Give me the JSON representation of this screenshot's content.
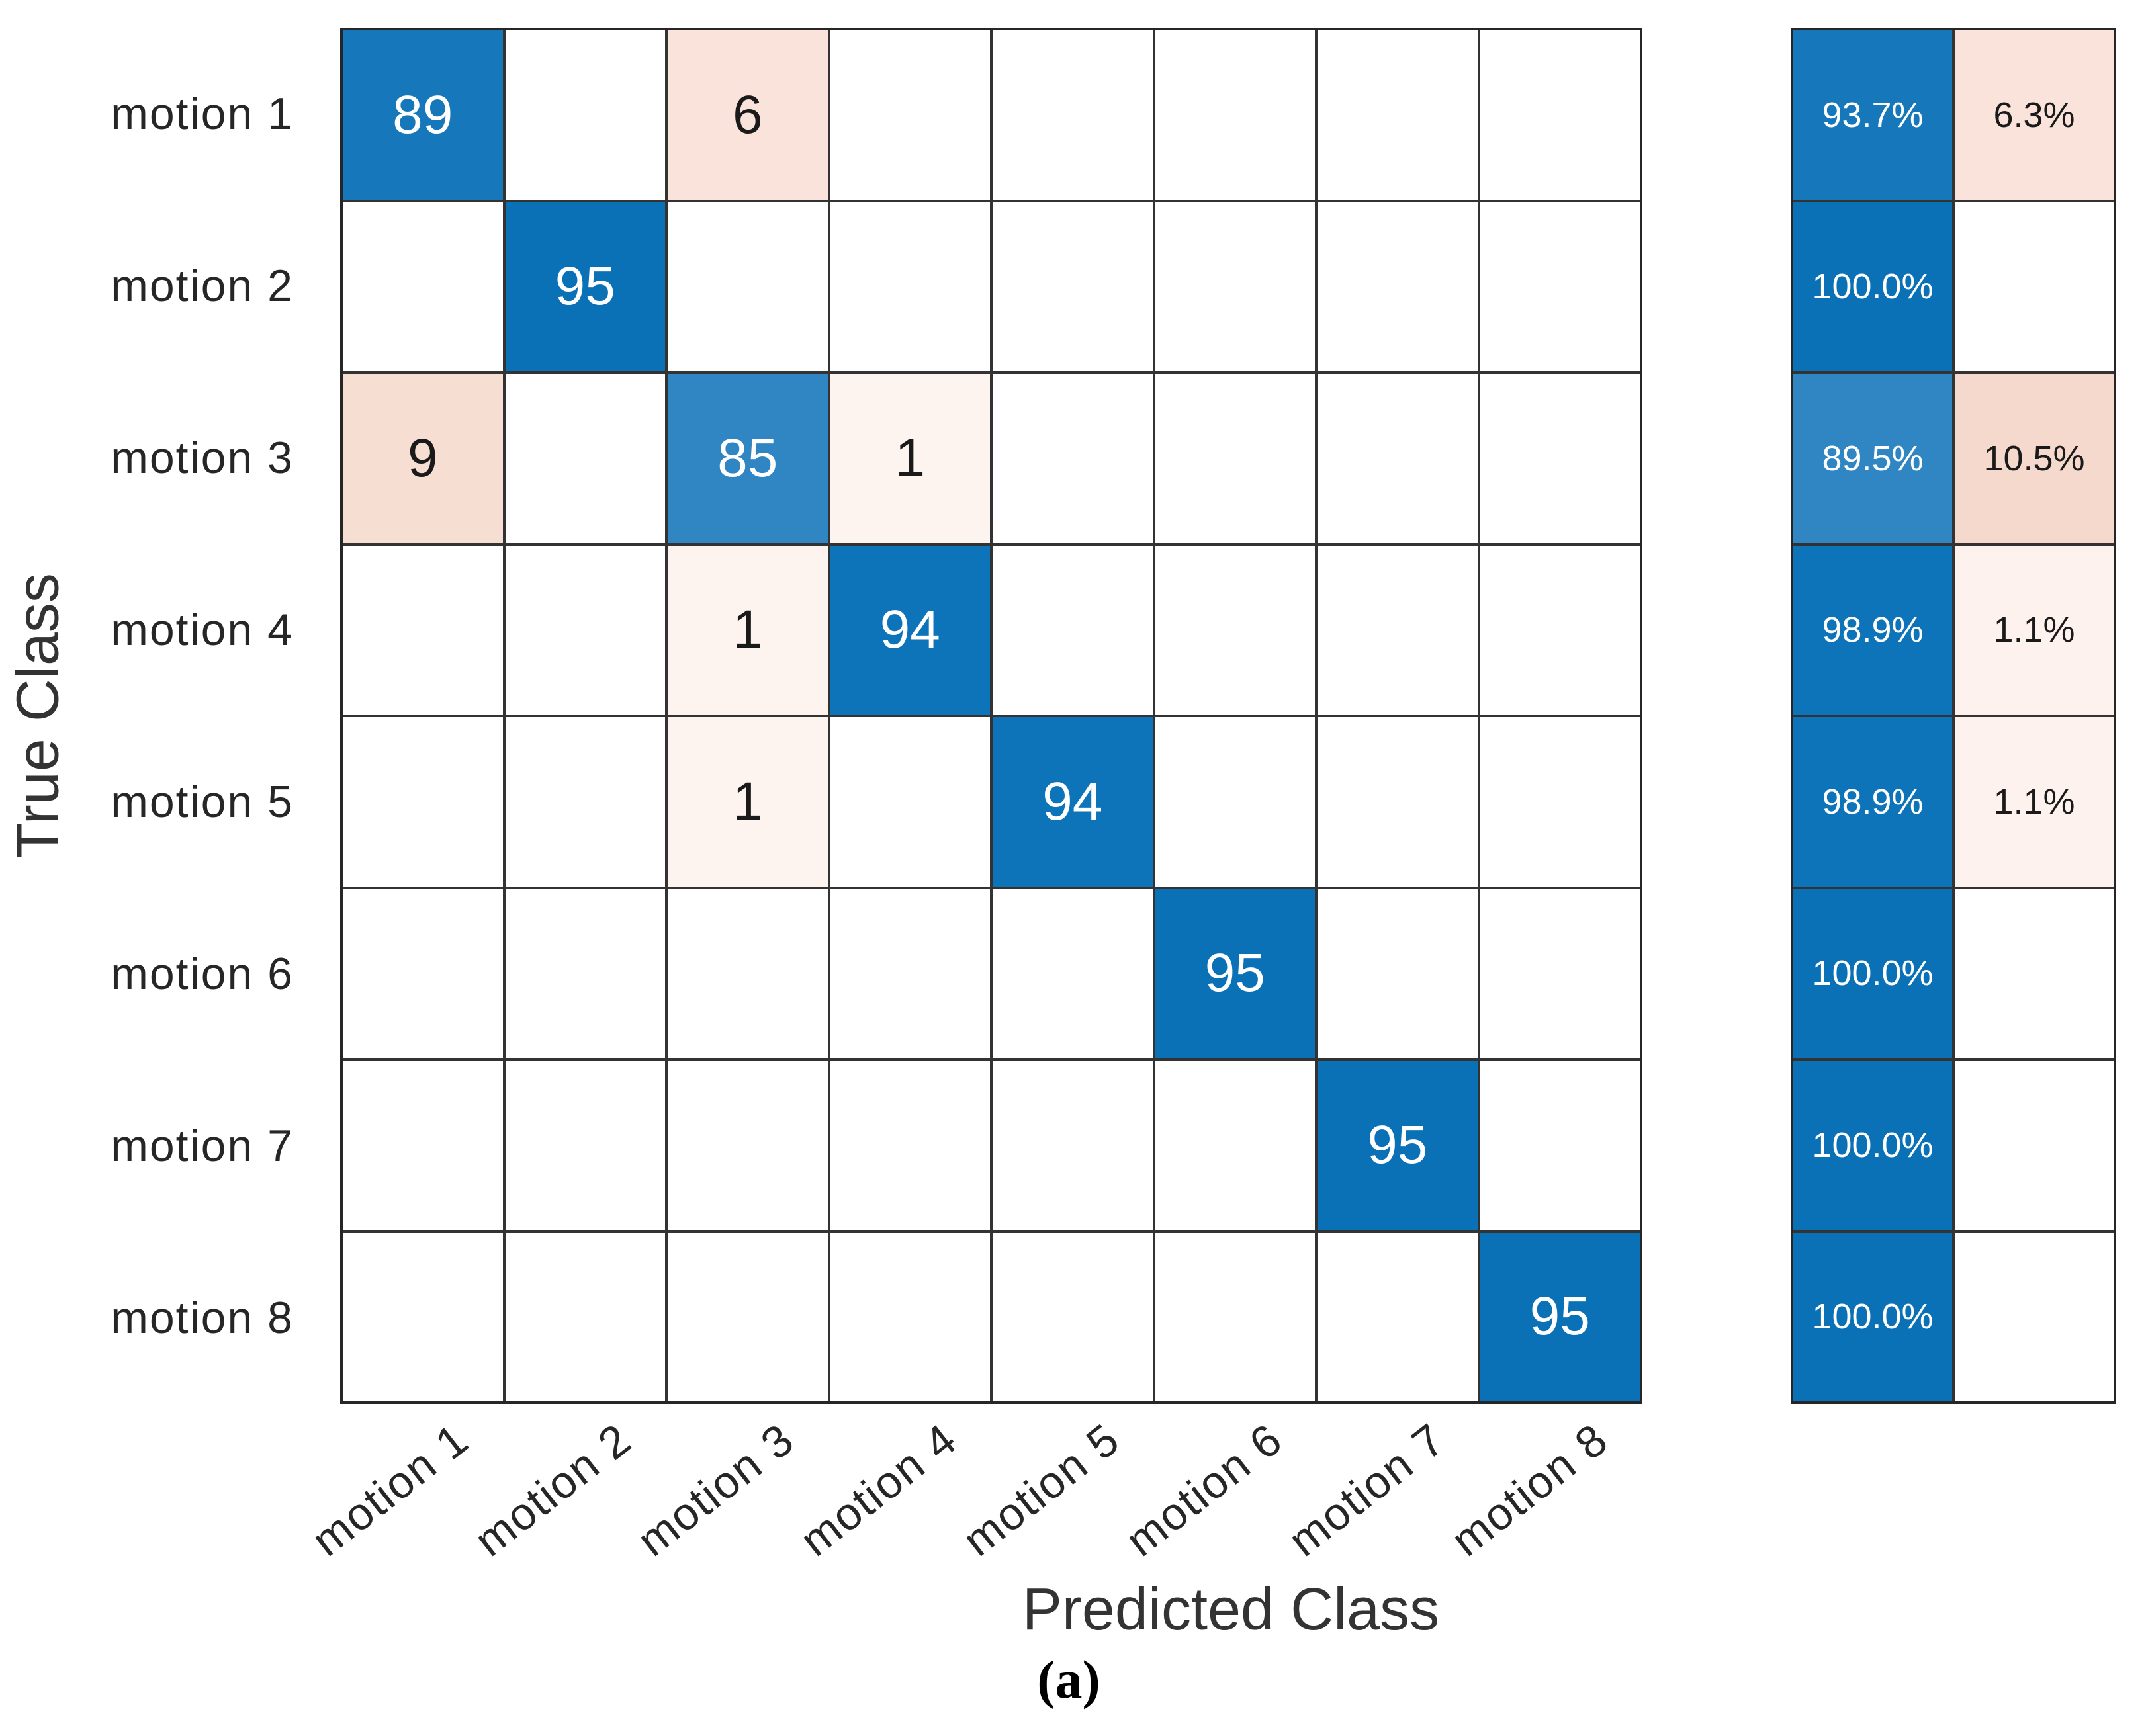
{
  "chart_data": {
    "type": "heatmap",
    "subtype": "confusion-matrix",
    "title": "",
    "x_axis_label": "Predicted Class",
    "y_axis_label": "True Class",
    "caption": "(a)",
    "classes": [
      "motion 1",
      "motion 2",
      "motion 3",
      "motion 4",
      "motion 5",
      "motion 6",
      "motion 7",
      "motion 8"
    ],
    "matrix": [
      [
        89,
        0,
        6,
        0,
        0,
        0,
        0,
        0
      ],
      [
        0,
        95,
        0,
        0,
        0,
        0,
        0,
        0
      ],
      [
        9,
        0,
        85,
        1,
        0,
        0,
        0,
        0
      ],
      [
        0,
        0,
        1,
        94,
        0,
        0,
        0,
        0
      ],
      [
        0,
        0,
        1,
        0,
        94,
        0,
        0,
        0
      ],
      [
        0,
        0,
        0,
        0,
        0,
        95,
        0,
        0
      ],
      [
        0,
        0,
        0,
        0,
        0,
        0,
        95,
        0
      ],
      [
        0,
        0,
        0,
        0,
        0,
        0,
        0,
        95
      ]
    ],
    "row_summary": {
      "correct_pct": [
        "93.7%",
        "100.0%",
        "89.5%",
        "98.9%",
        "98.9%",
        "100.0%",
        "100.0%",
        "100.0%"
      ],
      "incorrect_pct": [
        "6.3%",
        "",
        "10.5%",
        "1.1%",
        "1.1%",
        "",
        "",
        ""
      ]
    },
    "cells": [
      {
        "r": 0,
        "c": 0,
        "v": "89",
        "bg": "#1777bb",
        "fg": "#ffffff"
      },
      {
        "r": 0,
        "c": 2,
        "v": "6",
        "bg": "#f9e3da",
        "fg": "#1a1a1a"
      },
      {
        "r": 1,
        "c": 1,
        "v": "95",
        "bg": "#0a71b7",
        "fg": "#ffffff"
      },
      {
        "r": 2,
        "c": 0,
        "v": "9",
        "bg": "#f7ded3",
        "fg": "#1a1a1a"
      },
      {
        "r": 2,
        "c": 2,
        "v": "85",
        "bg": "#3085c3",
        "fg": "#ffffff"
      },
      {
        "r": 2,
        "c": 3,
        "v": "1",
        "bg": "#fdf4f0",
        "fg": "#1a1a1a"
      },
      {
        "r": 3,
        "c": 2,
        "v": "1",
        "bg": "#fdf4f0",
        "fg": "#1a1a1a"
      },
      {
        "r": 3,
        "c": 3,
        "v": "94",
        "bg": "#0e74b9",
        "fg": "#ffffff"
      },
      {
        "r": 4,
        "c": 2,
        "v": "1",
        "bg": "#fdf4f0",
        "fg": "#1a1a1a"
      },
      {
        "r": 4,
        "c": 4,
        "v": "94",
        "bg": "#0e74b9",
        "fg": "#ffffff"
      },
      {
        "r": 5,
        "c": 5,
        "v": "95",
        "bg": "#0a71b7",
        "fg": "#ffffff"
      },
      {
        "r": 6,
        "c": 6,
        "v": "95",
        "bg": "#0a71b7",
        "fg": "#ffffff"
      },
      {
        "r": 7,
        "c": 7,
        "v": "95",
        "bg": "#0a71b7",
        "fg": "#ffffff"
      }
    ],
    "summary_cells": [
      {
        "r": 0,
        "c": 0,
        "v": "93.7%",
        "bg": "#1777bb",
        "fg": "#ffffff"
      },
      {
        "r": 0,
        "c": 1,
        "v": "6.3%",
        "bg": "#f9e3da",
        "fg": "#1a1a1a"
      },
      {
        "r": 1,
        "c": 0,
        "v": "100.0%",
        "bg": "#0a71b7",
        "fg": "#ffffff"
      },
      {
        "r": 2,
        "c": 0,
        "v": "89.5%",
        "bg": "#3085c3",
        "fg": "#ffffff"
      },
      {
        "r": 2,
        "c": 1,
        "v": "10.5%",
        "bg": "#f5d9cc",
        "fg": "#1a1a1a"
      },
      {
        "r": 3,
        "c": 0,
        "v": "98.9%",
        "bg": "#0e74b9",
        "fg": "#ffffff"
      },
      {
        "r": 3,
        "c": 1,
        "v": "1.1%",
        "bg": "#fdf2ee",
        "fg": "#1a1a1a"
      },
      {
        "r": 4,
        "c": 0,
        "v": "98.9%",
        "bg": "#0e74b9",
        "fg": "#ffffff"
      },
      {
        "r": 4,
        "c": 1,
        "v": "1.1%",
        "bg": "#fdf2ee",
        "fg": "#1a1a1a"
      },
      {
        "r": 5,
        "c": 0,
        "v": "100.0%",
        "bg": "#0a71b7",
        "fg": "#ffffff"
      },
      {
        "r": 6,
        "c": 0,
        "v": "100.0%",
        "bg": "#0a71b7",
        "fg": "#ffffff"
      },
      {
        "r": 7,
        "c": 0,
        "v": "100.0%",
        "bg": "#0a71b7",
        "fg": "#ffffff"
      }
    ],
    "colors": {
      "diagonal_full": "#0a71b7",
      "off_diagonal_base": "#f7ded3",
      "empty": "#ffffff",
      "grid_line": "#333333",
      "border": "#262626"
    },
    "grid": true,
    "legend_position": "none",
    "axis_ranges": {
      "rows": 8,
      "cols": 8
    }
  }
}
